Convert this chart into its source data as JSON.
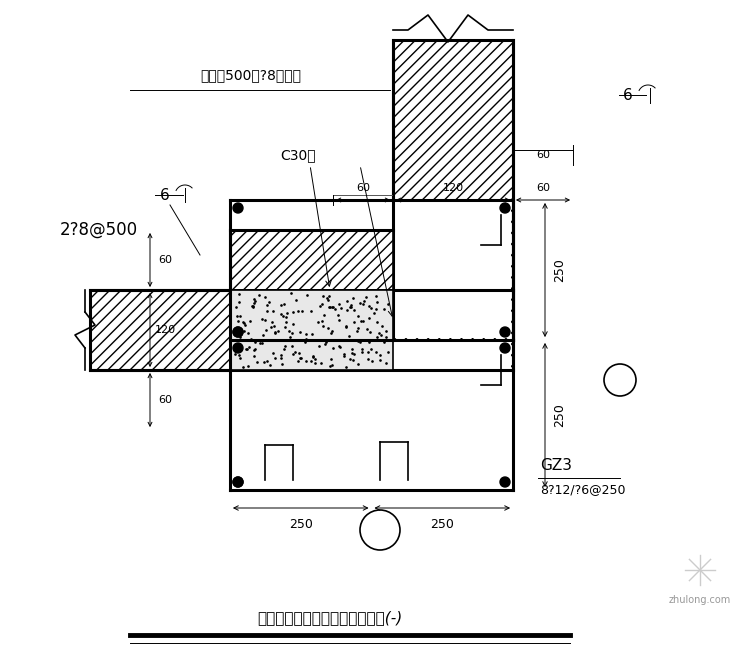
{
  "title": "外围护墙与钢柱转角处连接做法(-)",
  "bg_color": "#ffffff",
  "figsize": [
    7.54,
    6.68
  ],
  "dpi": 100,
  "top_note": "沿高度500设?8拉结筋",
  "c30_label": "C30砼",
  "rebar_label": "2?8@500",
  "gz3_label": "GZ3",
  "gz3_rebar": "8?12/?6@250",
  "dim_60": "60",
  "dim_120": "120",
  "dim_250": "250",
  "rebar_dia": "6"
}
